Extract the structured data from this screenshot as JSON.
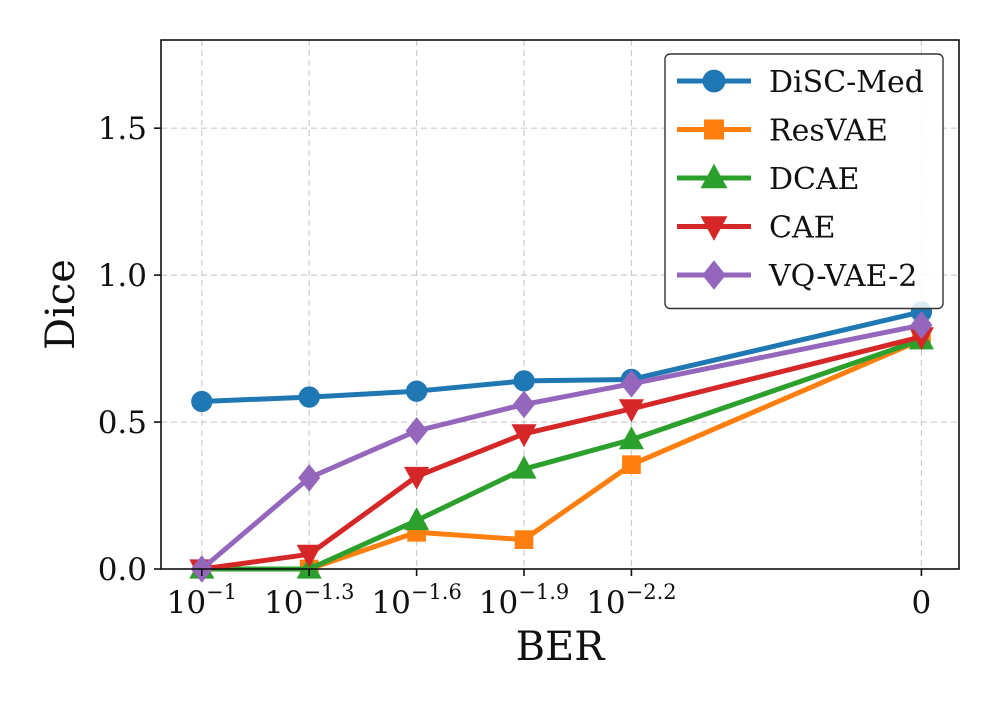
{
  "chart_data": {
    "type": "line",
    "title": "",
    "xlabel": "BER",
    "ylabel": "Dice",
    "x_tick_labels": [
      {
        "base": "10",
        "exp": "−1"
      },
      {
        "base": "10",
        "exp": "−1.3"
      },
      {
        "base": "10",
        "exp": "−1.6"
      },
      {
        "base": "10",
        "exp": "−1.9"
      },
      {
        "base": "10",
        "exp": "−2.2"
      },
      {
        "base": "0",
        "exp": ""
      }
    ],
    "x_positions": [
      1,
      2,
      3,
      4,
      5,
      7.7
    ],
    "xlim": [
      0.62,
      8.05
    ],
    "ylim": [
      0.0,
      1.8
    ],
    "y_ticks": [
      0.0,
      0.5,
      1.0,
      1.5
    ],
    "y_tick_labels": [
      "0.0",
      "0.5",
      "1.0",
      "1.5"
    ],
    "grid": true,
    "legend_position": "top-right",
    "series": [
      {
        "name": "DiSC-Med",
        "color": "#1f77b4",
        "marker": "circle",
        "values": [
          0.57,
          0.585,
          0.605,
          0.64,
          0.645,
          0.875
        ]
      },
      {
        "name": "ResVAE",
        "color": "#ff7f0e",
        "marker": "square",
        "values": [
          0.0,
          0.0,
          0.125,
          0.1,
          0.355,
          0.78
        ]
      },
      {
        "name": "DCAE",
        "color": "#2ca02c",
        "marker": "triangle-up",
        "values": [
          0.0,
          0.0,
          0.165,
          0.34,
          0.44,
          0.78
        ]
      },
      {
        "name": "CAE",
        "color": "#d62728",
        "marker": "triangle-down",
        "values": [
          0.0,
          0.05,
          0.315,
          0.46,
          0.545,
          0.79
        ]
      },
      {
        "name": "VQ-VAE-2",
        "color": "#9467bd",
        "marker": "diamond",
        "values": [
          0.0,
          0.31,
          0.47,
          0.56,
          0.63,
          0.83
        ]
      }
    ]
  }
}
